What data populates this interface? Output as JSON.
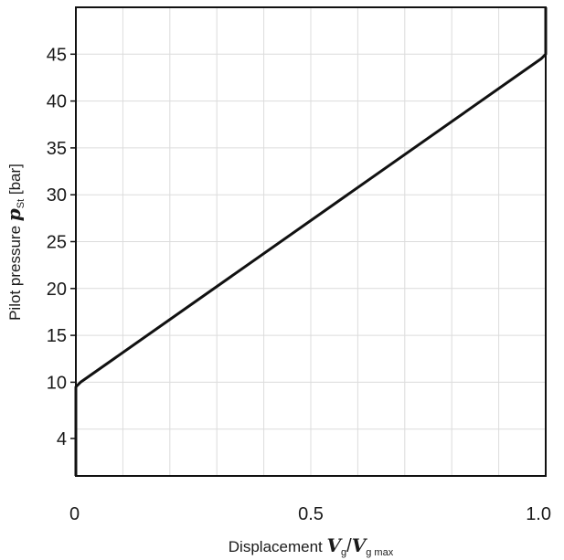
{
  "chart_data": {
    "type": "line",
    "xlabel": {
      "prefix": "Displacement ",
      "var1": "V",
      "sub1": "g",
      "slash": "/",
      "var2": "V",
      "sub2": "g max"
    },
    "ylabel": {
      "prefix": "Pilot pressure ",
      "var": "p",
      "sub": "St",
      "suffix": " [bar]"
    },
    "xlim": [
      0,
      1.0
    ],
    "ylim": [
      0,
      50
    ],
    "x_ticks": [
      {
        "value": 0,
        "label": "0"
      },
      {
        "value": 0.5,
        "label": "0.5"
      },
      {
        "value": 1.0,
        "label": "1.0"
      }
    ],
    "y_ticks": [
      {
        "value": 4,
        "label": "4"
      },
      {
        "value": 10,
        "label": "10"
      },
      {
        "value": 15,
        "label": "15"
      },
      {
        "value": 20,
        "label": "20"
      },
      {
        "value": 25,
        "label": "25"
      },
      {
        "value": 30,
        "label": "30"
      },
      {
        "value": 35,
        "label": "35"
      },
      {
        "value": 40,
        "label": "40"
      },
      {
        "value": 45,
        "label": "45"
      }
    ],
    "x_grid": [
      0.1,
      0.2,
      0.3,
      0.4,
      0.5,
      0.6,
      0.7,
      0.8,
      0.9
    ],
    "y_grid": [
      5,
      10,
      15,
      20,
      25,
      30,
      35,
      40,
      45
    ],
    "grid": true,
    "series": [
      {
        "color": "#111111",
        "x": [
          0,
          0,
          0.01,
          0.99,
          1.0,
          1.0
        ],
        "y": [
          0,
          9.5,
          10,
          44.5,
          45,
          50
        ]
      }
    ]
  }
}
